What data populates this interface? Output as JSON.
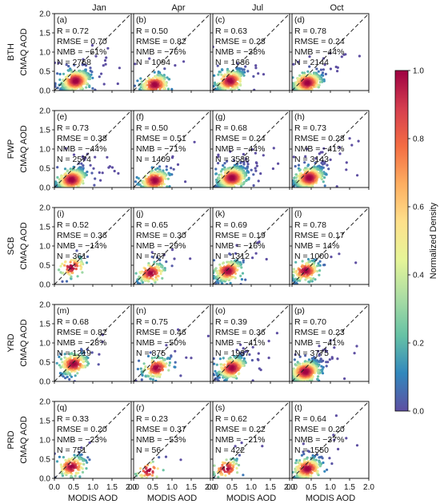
{
  "columns": [
    "Jan",
    "Apr",
    "Jul",
    "Oct"
  ],
  "rows": [
    "BTH",
    "FWP",
    "SCB",
    "YRD",
    "PRD"
  ],
  "ylabel": "CMAQ AOD",
  "xlabel": "MODIS AOD",
  "colorbar": {
    "label": "Normalized Density",
    "ticks": [
      "0.0",
      "0.2",
      "0.4",
      "0.6",
      "0.8",
      "1.0"
    ],
    "colormap": [
      "#5e4fa2",
      "#3288bd",
      "#66c2a5",
      "#abdda4",
      "#e6f598",
      "#fee08b",
      "#fdae61",
      "#f46d43",
      "#d53e4f",
      "#9e0142"
    ]
  },
  "chart_data": {
    "type": "scatter",
    "xlim": [
      0.0,
      2.0
    ],
    "ylim": [
      0.0,
      2.0
    ],
    "x_ticks": [
      "0.0",
      "0.5",
      "1.0",
      "1.5",
      "2.0"
    ],
    "y_ticks": [
      "0.0",
      "0.5",
      "1.0",
      "1.5",
      "2.0"
    ],
    "reference_line": "1:1",
    "panels": [
      {
        "label": "(a)",
        "region": "BTH",
        "month": "Jan",
        "R": "R = 0.72",
        "RMSE": "RMSE = 0.70",
        "NMB": "NMB = −61%",
        "N": "N = 2768",
        "mx": 0.55,
        "my": 0.25
      },
      {
        "label": "(b)",
        "region": "BTH",
        "month": "Apr",
        "R": "R = 0.50",
        "RMSE": "RMSE = 0.82",
        "NMB": "NMB = −76%",
        "N": "N = 1094",
        "mx": 0.55,
        "my": 0.15
      },
      {
        "label": "(c)",
        "region": "BTH",
        "month": "Jul",
        "R": "R = 0.63",
        "RMSE": "RMSE = 0.28",
        "NMB": "NMB = −38%",
        "N": "N = 1636",
        "mx": 0.45,
        "my": 0.25
      },
      {
        "label": "(d)",
        "region": "BTH",
        "month": "Oct",
        "R": "R = 0.78",
        "RMSE": "RMSE = 0.24",
        "NMB": "NMB = −44%",
        "N": "N = 2144",
        "mx": 0.4,
        "my": 0.2
      },
      {
        "label": "(e)",
        "region": "FWP",
        "month": "Jan",
        "R": "R = 0.73",
        "RMSE": "RMSE = 0.38",
        "NMB": "NMB = −44%",
        "N": "N = 2574",
        "mx": 0.45,
        "my": 0.2
      },
      {
        "label": "(f)",
        "region": "FWP",
        "month": "Apr",
        "R": "R = 0.50",
        "RMSE": "RMSE = 0.51",
        "NMB": "NMB = −71%",
        "N": "N = 1409",
        "mx": 0.55,
        "my": 0.18
      },
      {
        "label": "(g)",
        "region": "FWP",
        "month": "Jul",
        "R": "R = 0.68",
        "RMSE": "RMSE = 0.24",
        "NMB": "NMB = −44%",
        "N": "N = 3538",
        "mx": 0.5,
        "my": 0.25
      },
      {
        "label": "(h)",
        "region": "FWP",
        "month": "Oct",
        "R": "R = 0.73",
        "RMSE": "RMSE = 0.28",
        "NMB": "NMB = −41%",
        "N": "N = 3143",
        "mx": 0.45,
        "my": 0.25
      },
      {
        "label": "(i)",
        "region": "SCB",
        "month": "Jan",
        "R": "R = 0.52",
        "RMSE": "RMSE = 0.36",
        "NMB": "NMB = −14%",
        "N": "N = 361",
        "mx": 0.45,
        "my": 0.45
      },
      {
        "label": "(j)",
        "region": "SCB",
        "month": "Apr",
        "R": "R = 0.65",
        "RMSE": "RMSE = 0.30",
        "NMB": "NMB = −29%",
        "N": "N = 767",
        "mx": 0.45,
        "my": 0.3
      },
      {
        "label": "(k)",
        "region": "SCB",
        "month": "Jul",
        "R": "R = 0.69",
        "RMSE": "RMSE = 0.19",
        "NMB": "NMB = −16%",
        "N": "N = 1312",
        "mx": 0.4,
        "my": 0.35
      },
      {
        "label": "(l)",
        "region": "SCB",
        "month": "Oct",
        "R": "R = 0.78",
        "RMSE": "RMSE = 0.17",
        "NMB": "NMB = 14%",
        "N": "N = 1000",
        "mx": 0.35,
        "my": 0.35
      },
      {
        "label": "(m)",
        "region": "YRD",
        "month": "Jan",
        "R": "R = 0.68",
        "RMSE": "RMSE = 0.82",
        "NMB": "NMB = −28%",
        "N": "N = 1219",
        "mx": 0.5,
        "my": 0.45
      },
      {
        "label": "(n)",
        "region": "YRD",
        "month": "Apr",
        "R": "R = 0.75",
        "RMSE": "RMSE = 0.46",
        "NMB": "NMB = −50%",
        "N": "N = 875",
        "mx": 0.6,
        "my": 0.35
      },
      {
        "label": "(o)",
        "region": "YRD",
        "month": "Jul",
        "R": "R = 0.39",
        "RMSE": "RMSE = 0.36",
        "NMB": "NMB = −41%",
        "N": "N = 1937",
        "mx": 0.5,
        "my": 0.35
      },
      {
        "label": "(p)",
        "region": "YRD",
        "month": "Oct",
        "R": "R = 0.70",
        "RMSE": "RMSE = 0.23",
        "NMB": "NMB = −41%",
        "N": "N = 3775",
        "mx": 0.35,
        "my": 0.25
      },
      {
        "label": "(q)",
        "region": "PRD",
        "month": "Jan",
        "R": "R = 0.33",
        "RMSE": "RMSE = 0.20",
        "NMB": "NMB = −23%",
        "N": "N = 751",
        "mx": 0.45,
        "my": 0.3
      },
      {
        "label": "(r)",
        "region": "PRD",
        "month": "Apr",
        "R": "R = 0.23",
        "RMSE": "RMSE = 0.37",
        "NMB": "NMB = −53%",
        "N": "N = 56",
        "mx": 0.4,
        "my": 0.2
      },
      {
        "label": "(s)",
        "region": "PRD",
        "month": "Jul",
        "R": "R = 0.62",
        "RMSE": "RMSE = 0.22",
        "NMB": "NMB = −21%",
        "N": "N = 422",
        "mx": 0.35,
        "my": 0.25
      },
      {
        "label": "(t)",
        "region": "PRD",
        "month": "Oct",
        "R": "R = 0.64",
        "RMSE": "RMSE = 0.20",
        "NMB": "NMB = −37%",
        "N": "N = 1550",
        "mx": 0.4,
        "my": 0.25
      }
    ]
  }
}
